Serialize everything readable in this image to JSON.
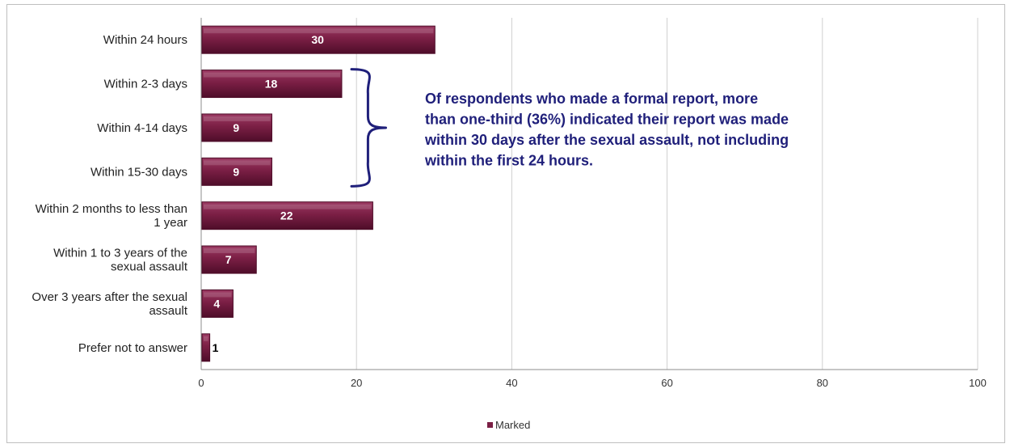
{
  "chart_data": {
    "type": "bar",
    "orientation": "horizontal",
    "categories": [
      "Within 24 hours",
      "Within 2-3 days",
      "Within 4-14 days",
      "Within 15-30 days",
      "Within 2 months to less than 1 year",
      "Within 1 to 3 years of the sexual assault",
      "Over 3 years after the sexual assault",
      "Prefer not to answer"
    ],
    "series": [
      {
        "name": "Marked",
        "values": [
          30,
          18,
          9,
          9,
          22,
          7,
          4,
          1
        ]
      }
    ],
    "xlim": [
      0,
      100
    ],
    "x_ticks": [
      0,
      20,
      40,
      60,
      80,
      100
    ],
    "grid": "vertical",
    "legend": "bottom-center",
    "annotation": {
      "lines": [
        "Of respondents who made a formal report, more",
        "than one-third (36%) indicated their report was made",
        "within 30 days after the sexual assault, not including",
        "within the first 24 hours."
      ],
      "bracket_categories": [
        "Within 2-3 days",
        "Within 4-14 days",
        "Within 15-30 days"
      ]
    }
  },
  "colors": {
    "bar": "#7b1f45",
    "bar_light": "#9c3a63",
    "bar_dark": "#4e0d29",
    "annotation": "#1f1f7a",
    "grid": "#d0d0d0",
    "axis": "#8c8c8c",
    "label_inside": "#ffffff",
    "label_outside": "#000000"
  }
}
